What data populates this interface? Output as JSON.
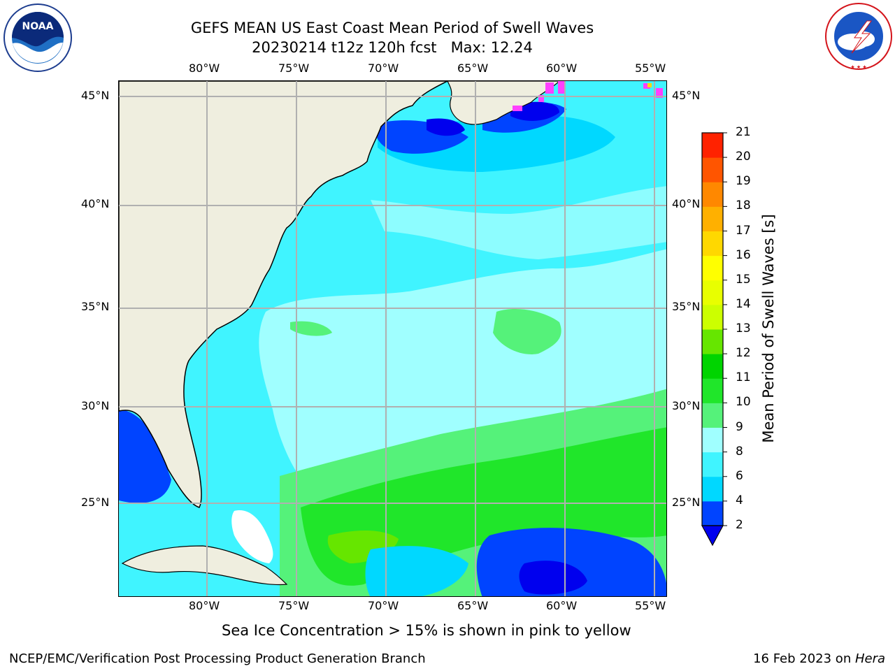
{
  "title": {
    "line1": "GEFS MEAN US East Coast Mean Period of Swell Waves",
    "line2": "20230214 t12z 120h fcst   Max: 12.24"
  },
  "logos": {
    "left": {
      "icon": "noaa-logo-icon",
      "text": "NOAA",
      "ring_text": "NATIONAL OCEANIC AND ATMOSPHERIC ADMINISTRATION · U.S. DEPARTMENT OF COMMERCE"
    },
    "right": {
      "icon": "nws-logo-icon",
      "ring_text": "NATIONAL WEATHER SERVICE"
    }
  },
  "map": {
    "region": "US East Coast / Western North Atlantic",
    "projection": "equirectangular",
    "lon_range": [
      -85,
      -54.5
    ],
    "lat_range": [
      20.5,
      45.8
    ],
    "lon_ticks": [
      "80°W",
      "75°W",
      "70°W",
      "65°W",
      "60°W",
      "55°W"
    ],
    "lat_ticks": [
      "45°N",
      "40°N",
      "35°N",
      "30°N",
      "25°N"
    ],
    "gridlines": true,
    "land_color": "#efeedf",
    "ice_color": "#ff40ff",
    "swell_period_max": 12.24
  },
  "colorbar": {
    "label": "Mean Period of Swell Waves [s]",
    "ticks": [
      "2",
      "4",
      "6",
      "8",
      "9",
      "10",
      "11",
      "12",
      "13",
      "14",
      "15",
      "16",
      "17",
      "18",
      "19",
      "20",
      "21"
    ],
    "colors": [
      "#0044ff",
      "#00d8ff",
      "#40f4ff",
      "#a0ffff",
      "#55f27a",
      "#20e62a",
      "#00d400",
      "#66e600",
      "#ccff00",
      "#e8ff00",
      "#ffff00",
      "#ffd800",
      "#ffb000",
      "#ff8800",
      "#ff5500",
      "#ff2200"
    ],
    "under_color": "#0000ee",
    "extend": "min"
  },
  "footnote": "Sea Ice Concentration > 15% is shown in pink to yellow",
  "footer": {
    "left": "NCEP/EMC/Verification Post Processing Product Generation Branch",
    "right_date": "16 Feb 2023 on ",
    "right_machine": "Hera"
  }
}
